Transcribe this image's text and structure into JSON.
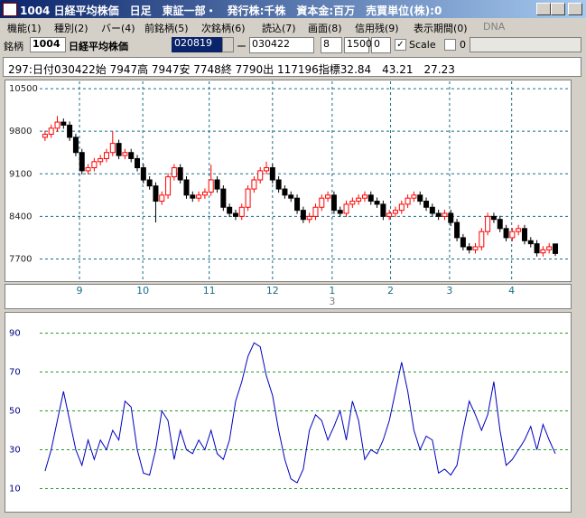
{
  "window": {
    "title": "1004 日経平均株価　日足　東証一部・　発行株:千株　資本金:百万　売買単位(株):0"
  },
  "menu": [
    "機能(1)",
    "種別(2)",
    "バー(4)",
    "前銘柄(5)",
    "次銘柄(6)",
    "読込(7)",
    "画面(8)",
    "信用残(9)",
    "表示期間(0)",
    "DNA"
  ],
  "toolbar": {
    "label": "銘柄",
    "code": "1004",
    "name": "日経平均株価",
    "from": "020819",
    "dash": "ー",
    "to": "030422",
    "span": "8",
    "count": "1500",
    "offset": "0",
    "scale": "Scale",
    "scale_value": "0"
  },
  "info": "297:日付030422始 7947高 7947安 7748終 7790出 117196指標32.84　43.21　27.23",
  "chart_data": [
    {
      "type": "candlestick",
      "up_color": "#ff0000",
      "down_color": "#000000",
      "grid": true,
      "ylim": [
        7350,
        10620
      ],
      "yticks": [
        10500,
        9800,
        9100,
        8400,
        7700
      ],
      "xlim": [
        -6.3,
        85.2
      ],
      "xticks": [
        {
          "value": 5.6,
          "label": "9"
        },
        {
          "value": 15.9,
          "label": "10"
        },
        {
          "value": 26.7,
          "label": "11"
        },
        {
          "value": 37,
          "label": "12"
        },
        {
          "value": 46.7,
          "label": "1"
        },
        {
          "value": 56.2,
          "label": "2"
        },
        {
          "value": 65.8,
          "label": "3"
        },
        {
          "value": 75.9,
          "label": "4"
        }
      ],
      "year_label": "3",
      "candles": [
        [
          9700,
          9810,
          9640,
          9750
        ],
        [
          9750,
          9910,
          9690,
          9850
        ],
        [
          9850,
          10050,
          9790,
          9950
        ],
        [
          9950,
          10010,
          9840,
          9900
        ],
        [
          9900,
          9960,
          9640,
          9700
        ],
        [
          9700,
          9760,
          9390,
          9450
        ],
        [
          9450,
          9510,
          9090,
          9150
        ],
        [
          9150,
          9260,
          9090,
          9200
        ],
        [
          9200,
          9360,
          9140,
          9300
        ],
        [
          9300,
          9410,
          9240,
          9350
        ],
        [
          9350,
          9510,
          9290,
          9450
        ],
        [
          9450,
          9800,
          9390,
          9600
        ],
        [
          9600,
          9660,
          9340,
          9400
        ],
        [
          9400,
          9510,
          9340,
          9450
        ],
        [
          9450,
          9510,
          9290,
          9350
        ],
        [
          9350,
          9410,
          9140,
          9200
        ],
        [
          9200,
          9260,
          8940,
          9000
        ],
        [
          9000,
          9060,
          8840,
          8900
        ],
        [
          8900,
          8960,
          8300,
          8650
        ],
        [
          8650,
          8810,
          8590,
          8750
        ],
        [
          8750,
          9110,
          8690,
          9050
        ],
        [
          9050,
          9260,
          8990,
          9200
        ],
        [
          9200,
          9260,
          8940,
          9000
        ],
        [
          9000,
          9060,
          8690,
          8750
        ],
        [
          8750,
          8810,
          8640,
          8700
        ],
        [
          8700,
          8810,
          8640,
          8750
        ],
        [
          8750,
          8860,
          8690,
          8800
        ],
        [
          8800,
          9250,
          8740,
          9000
        ],
        [
          9000,
          9060,
          8790,
          8850
        ],
        [
          8850,
          8910,
          8490,
          8550
        ],
        [
          8550,
          8610,
          8390,
          8450
        ],
        [
          8450,
          8510,
          8340,
          8400
        ],
        [
          8400,
          8610,
          8340,
          8550
        ],
        [
          8550,
          8910,
          8490,
          8850
        ],
        [
          8850,
          9060,
          8790,
          9000
        ],
        [
          9000,
          9210,
          8940,
          9150
        ],
        [
          9150,
          9300,
          9090,
          9200
        ],
        [
          9200,
          9260,
          8940,
          9000
        ],
        [
          9000,
          9060,
          8790,
          8850
        ],
        [
          8850,
          8910,
          8690,
          8750
        ],
        [
          8750,
          8810,
          8640,
          8700
        ],
        [
          8700,
          8760,
          8440,
          8500
        ],
        [
          8500,
          8560,
          8290,
          8350
        ],
        [
          8350,
          8460,
          8290,
          8400
        ],
        [
          8400,
          8610,
          8340,
          8550
        ],
        [
          8550,
          8760,
          8490,
          8700
        ],
        [
          8700,
          8810,
          8640,
          8750
        ],
        [
          8750,
          8810,
          8440,
          8500
        ],
        [
          8500,
          8560,
          8390,
          8450
        ],
        [
          8450,
          8660,
          8390,
          8600
        ],
        [
          8600,
          8710,
          8540,
          8650
        ],
        [
          8650,
          8760,
          8590,
          8700
        ],
        [
          8700,
          8810,
          8640,
          8750
        ],
        [
          8750,
          8810,
          8590,
          8650
        ],
        [
          8650,
          8710,
          8540,
          8600
        ],
        [
          8600,
          8660,
          8340,
          8400
        ],
        [
          8400,
          8510,
          8340,
          8450
        ],
        [
          8450,
          8560,
          8390,
          8500
        ],
        [
          8500,
          8660,
          8440,
          8600
        ],
        [
          8600,
          8760,
          8540,
          8700
        ],
        [
          8700,
          8810,
          8640,
          8750
        ],
        [
          8750,
          8810,
          8590,
          8650
        ],
        [
          8650,
          8710,
          8490,
          8550
        ],
        [
          8550,
          8610,
          8390,
          8450
        ],
        [
          8450,
          8510,
          8340,
          8400
        ],
        [
          8400,
          8510,
          8340,
          8450
        ],
        [
          8450,
          8510,
          8240,
          8300
        ],
        [
          8300,
          8360,
          7990,
          8050
        ],
        [
          8050,
          8110,
          7840,
          7900
        ],
        [
          7900,
          7960,
          7790,
          7850
        ],
        [
          7850,
          7960,
          7790,
          7900
        ],
        [
          7900,
          8210,
          7840,
          8150
        ],
        [
          8150,
          8460,
          8090,
          8400
        ],
        [
          8400,
          8460,
          8290,
          8350
        ],
        [
          8350,
          8410,
          8140,
          8200
        ],
        [
          8200,
          8260,
          7990,
          8050
        ],
        [
          8050,
          8210,
          7990,
          8150
        ],
        [
          8150,
          8260,
          8090,
          8200
        ],
        [
          8200,
          8260,
          7940,
          8000
        ],
        [
          8000,
          8060,
          7890,
          7950
        ],
        [
          7950,
          8010,
          7740,
          7800
        ],
        [
          7800,
          7910,
          7740,
          7850
        ],
        [
          7850,
          7960,
          7790,
          7900
        ],
        [
          7947,
          7947,
          7748,
          7790
        ]
      ]
    },
    {
      "type": "line",
      "color": "#0000c0",
      "grid": true,
      "ylim": [
        0,
        100
      ],
      "yticks": [
        90,
        70,
        50,
        30,
        10
      ],
      "xlim": [
        -6.3,
        85.2
      ],
      "values": [
        19,
        30,
        45,
        60,
        45,
        30,
        22,
        35,
        25,
        35,
        30,
        40,
        35,
        55,
        52,
        30,
        18,
        17,
        30,
        50,
        45,
        25,
        40,
        30,
        28,
        35,
        30,
        40,
        28,
        25,
        35,
        55,
        65,
        78,
        85,
        83,
        68,
        58,
        40,
        25,
        15,
        13,
        20,
        40,
        48,
        45,
        35,
        42,
        50,
        35,
        55,
        45,
        25,
        30,
        28,
        35,
        45,
        60,
        75,
        60,
        40,
        30,
        37,
        35,
        18,
        20,
        17,
        22,
        40,
        55,
        48,
        40,
        48,
        65,
        40,
        22,
        25,
        30,
        35,
        42,
        30,
        43,
        35,
        28
      ]
    }
  ]
}
